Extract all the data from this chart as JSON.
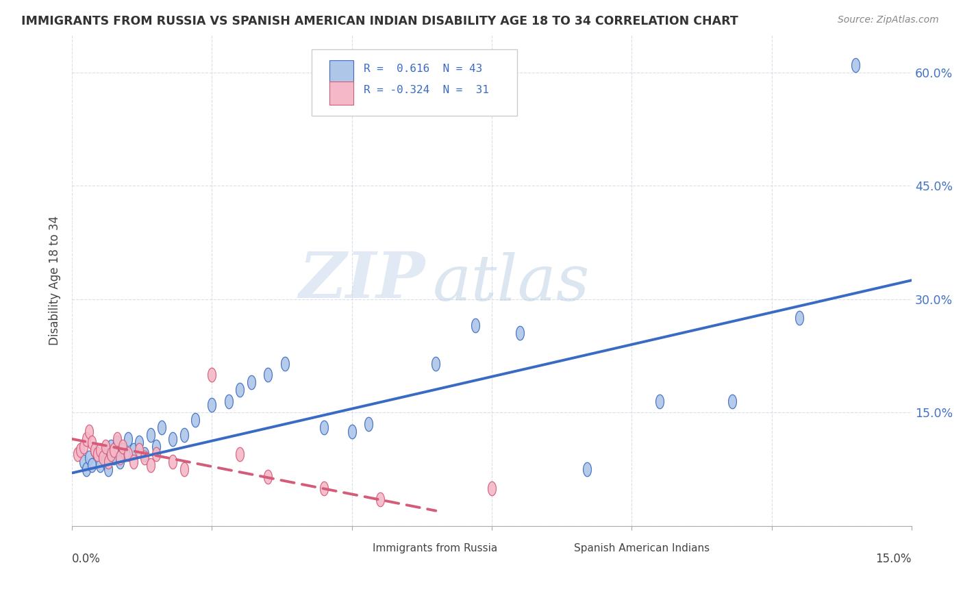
{
  "title": "IMMIGRANTS FROM RUSSIA VS SPANISH AMERICAN INDIAN DISABILITY AGE 18 TO 34 CORRELATION CHART",
  "source": "Source: ZipAtlas.com",
  "ylabel": "Disability Age 18 to 34",
  "xlim": [
    0,
    15
  ],
  "ylim": [
    0,
    65
  ],
  "blue_color": "#aec6e8",
  "pink_color": "#f5b8c8",
  "blue_line_color": "#3a6bc4",
  "pink_line_color": "#d45c78",
  "watermark_zip": "ZIP",
  "watermark_atlas": "atlas",
  "background_color": "#ffffff",
  "grid_color": "#d0d8e4",
  "blue_dots_x": [
    0.2,
    0.25,
    0.3,
    0.35,
    0.4,
    0.45,
    0.5,
    0.55,
    0.6,
    0.65,
    0.7,
    0.75,
    0.8,
    0.85,
    0.9,
    0.95,
    1.0,
    1.1,
    1.2,
    1.3,
    1.4,
    1.5,
    1.6,
    1.8,
    2.0,
    2.2,
    2.5,
    2.8,
    3.0,
    3.2,
    3.5,
    3.8,
    4.5,
    5.0,
    5.3,
    6.5,
    7.2,
    8.0,
    9.2,
    10.5,
    11.8,
    13.0,
    14.0
  ],
  "blue_dots_y": [
    8.5,
    7.5,
    9.0,
    8.0,
    10.0,
    9.5,
    8.0,
    9.5,
    8.5,
    7.5,
    10.5,
    9.0,
    11.0,
    8.5,
    10.0,
    9.5,
    11.5,
    10.0,
    11.0,
    9.5,
    12.0,
    10.5,
    13.0,
    11.5,
    12.0,
    14.0,
    16.0,
    16.5,
    18.0,
    19.0,
    20.0,
    21.5,
    13.0,
    12.5,
    13.5,
    21.5,
    26.5,
    25.5,
    7.5,
    16.5,
    16.5,
    27.5,
    61.0
  ],
  "pink_dots_x": [
    0.1,
    0.15,
    0.2,
    0.25,
    0.3,
    0.35,
    0.4,
    0.45,
    0.5,
    0.55,
    0.6,
    0.65,
    0.7,
    0.75,
    0.8,
    0.85,
    0.9,
    1.0,
    1.1,
    1.2,
    1.3,
    1.4,
    1.5,
    1.8,
    2.0,
    2.5,
    3.0,
    3.5,
    4.5,
    5.5,
    7.5
  ],
  "pink_dots_y": [
    9.5,
    10.0,
    10.5,
    11.5,
    12.5,
    11.0,
    10.0,
    9.5,
    10.0,
    9.0,
    10.5,
    8.5,
    9.5,
    10.0,
    11.5,
    9.0,
    10.5,
    9.5,
    8.5,
    10.0,
    9.0,
    8.0,
    9.5,
    8.5,
    7.5,
    20.0,
    9.5,
    6.5,
    5.0,
    3.5,
    5.0
  ],
  "blue_line_x0": 0.0,
  "blue_line_y0": 7.0,
  "blue_line_x1": 15.0,
  "blue_line_y1": 32.5,
  "pink_line_x0": 0.0,
  "pink_line_y0": 11.5,
  "pink_line_x1": 6.5,
  "pink_line_y1": 2.0,
  "ytick_values": [
    0,
    15,
    30,
    45,
    60
  ],
  "ytick_labels": [
    "",
    "15.0%",
    "30.0%",
    "45.0%",
    "60.0%"
  ]
}
